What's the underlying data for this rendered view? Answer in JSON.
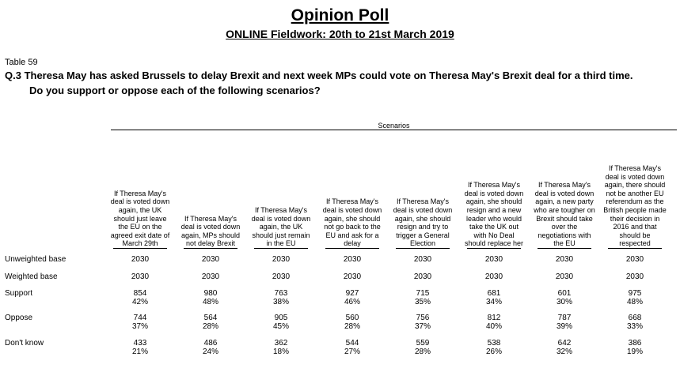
{
  "header": {
    "title": "Opinion Poll",
    "subtitle": "ONLINE Fieldwork: 20th to 21st March 2019",
    "table_label": "Table 59",
    "question_line1": "Q.3 Theresa May has asked Brussels to delay Brexit and next week MPs could vote on Theresa May's Brexit deal for a third time.",
    "question_line2": "Do you support or oppose each of the following scenarios?"
  },
  "table": {
    "group_label": "Scenarios",
    "columns": [
      "If Theresa May's deal is voted down again, the UK should just leave the EU on the agreed exit date of March 29th",
      "If Theresa May's deal is voted down again, MPs should not delay Brexit",
      "If Theresa May's deal is voted down again, the UK should just remain in the EU",
      "If Theresa May's deal is voted down again, she should not go back to the EU and ask for a delay",
      "If Theresa May's deal is voted down again, she should resign and try to trigger a General Election",
      "If Theresa May's deal is voted down again, she should resign and a new leader who would take the UK out with No Deal should replace her",
      "If Theresa May's deal is voted down again, a new party who are tougher on Brexit should take over the negotiations with the EU",
      "If Theresa May's deal is voted down again, there should not be another EU referendum as the British people made their decision in 2016 and that should be respected"
    ],
    "rows": [
      {
        "label": "Unweighted base",
        "values": [
          "2030",
          "2030",
          "2030",
          "2030",
          "2030",
          "2030",
          "2030",
          "2030"
        ]
      },
      {
        "label": "Weighted base",
        "values": [
          "2030",
          "2030",
          "2030",
          "2030",
          "2030",
          "2030",
          "2030",
          "2030"
        ]
      },
      {
        "label": "Support",
        "values": [
          "854",
          "980",
          "763",
          "927",
          "715",
          "681",
          "601",
          "975"
        ],
        "pcts": [
          "42%",
          "48%",
          "38%",
          "46%",
          "35%",
          "34%",
          "30%",
          "48%"
        ]
      },
      {
        "label": "Oppose",
        "values": [
          "744",
          "564",
          "905",
          "560",
          "756",
          "812",
          "787",
          "668"
        ],
        "pcts": [
          "37%",
          "28%",
          "45%",
          "28%",
          "37%",
          "40%",
          "39%",
          "33%"
        ]
      },
      {
        "label": "Don't know",
        "values": [
          "433",
          "486",
          "362",
          "544",
          "559",
          "538",
          "642",
          "386"
        ],
        "pcts": [
          "21%",
          "24%",
          "18%",
          "27%",
          "28%",
          "26%",
          "32%",
          "19%"
        ]
      }
    ]
  }
}
